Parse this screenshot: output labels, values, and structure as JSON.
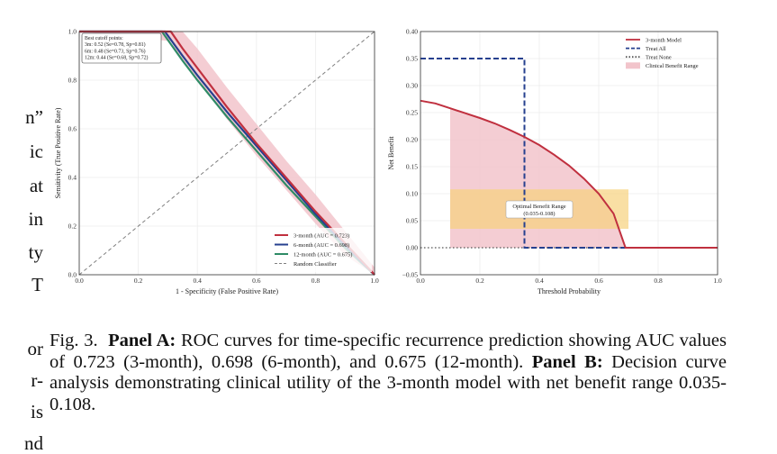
{
  "left_fragments": [
    "n”",
    "ic",
    "at",
    "in",
    "ty",
    "T",
    "or",
    "r-",
    "is",
    "nd"
  ],
  "caption": {
    "fig_label": "Fig. 3.",
    "panel_a_label": "Panel A:",
    "panel_a_text": "ROC curves for time-specific recurrence prediction showing AUC values of 0.723 (3-month), 0.698 (6-month), and 0.675 (12-month).",
    "panel_b_label": "Panel B:",
    "panel_b_text": "Decision curve analysis demonstrating clinical utility of the 3-month model with net benefit range 0.035-0.108."
  },
  "colors": {
    "three_month": "#c0303f",
    "six_month": "#26408f",
    "twelve_month": "#2e8b66",
    "random": "#808080",
    "ci_band": "#f2c4cb",
    "treat_all": "#26408f",
    "treat_none": "#555555",
    "optimal_box": "#f7d27e"
  },
  "chart_data": [
    {
      "type": "line",
      "panel": "A",
      "xlabel": "1 - Specificity (False Positive Rate)",
      "ylabel": "Sensitivity (True Positive Rate)",
      "xlim": [
        0.0,
        1.0
      ],
      "ylim": [
        0.0,
        1.0
      ],
      "x_ticks": [
        "0.0",
        "0.2",
        "0.4",
        "0.6",
        "0.8",
        "1.0"
      ],
      "y_ticks": [
        "0.0",
        "0.2",
        "0.4",
        "0.6",
        "0.8",
        "1.0"
      ],
      "grid": true,
      "legend_position": "lower-right",
      "annotation": {
        "title": "Best cutoff points:",
        "lines": [
          "3m: 0.52 (Se=0.78, Sp=0.81)",
          "6m: 0.48 (Se=0.73, Sp=0.76)",
          "12m: 0.44 (Se=0.68, Sp=0.72)"
        ]
      },
      "series": [
        {
          "name": "3-month (AUC = 0.723)",
          "color_key": "three_month",
          "x": [
            0.0,
            0.31,
            0.35,
            0.4,
            0.5,
            0.6,
            0.7,
            0.8,
            0.9,
            1.0
          ],
          "y": [
            1.0,
            1.0,
            0.93,
            0.85,
            0.69,
            0.54,
            0.4,
            0.26,
            0.13,
            0.0
          ],
          "band_upper": [
            1.0,
            1.0,
            1.0,
            0.93,
            0.77,
            0.62,
            0.47,
            0.33,
            0.18,
            0.03
          ],
          "band_lower": [
            1.0,
            0.96,
            0.88,
            0.8,
            0.64,
            0.49,
            0.35,
            0.21,
            0.08,
            0.0
          ]
        },
        {
          "name": "6-month (AUC = 0.698)",
          "color_key": "six_month",
          "x": [
            0.0,
            0.29,
            0.35,
            0.4,
            0.5,
            0.6,
            0.7,
            0.8,
            0.9,
            1.0
          ],
          "y": [
            1.0,
            1.0,
            0.9,
            0.82,
            0.67,
            0.53,
            0.39,
            0.25,
            0.12,
            0.0
          ]
        },
        {
          "name": "12-month (AUC = 0.675)",
          "color_key": "twelve_month",
          "x": [
            0.0,
            0.28,
            0.35,
            0.4,
            0.5,
            0.6,
            0.7,
            0.8,
            0.9,
            1.0
          ],
          "y": [
            1.0,
            1.0,
            0.88,
            0.8,
            0.65,
            0.51,
            0.37,
            0.24,
            0.11,
            0.0
          ]
        },
        {
          "name": "Random Classifier",
          "color_key": "random",
          "dashed": true,
          "x": [
            0.0,
            1.0
          ],
          "y": [
            0.0,
            1.0
          ]
        }
      ]
    },
    {
      "type": "line",
      "panel": "B",
      "xlabel": "Threshold Probability",
      "ylabel": "Net Benefit",
      "xlim": [
        0.0,
        1.0
      ],
      "ylim": [
        -0.05,
        0.4
      ],
      "x_ticks": [
        "0.0",
        "0.2",
        "0.4",
        "0.6",
        "0.8",
        "1.0"
      ],
      "y_ticks": [
        "−0.05",
        "0.00",
        "0.05",
        "0.10",
        "0.15",
        "0.20",
        "0.25",
        "0.30",
        "0.35",
        "0.40"
      ],
      "grid": true,
      "legend_position": "top-right",
      "series": [
        {
          "name": "3-month Model",
          "color_key": "three_month",
          "x": [
            0.0,
            0.05,
            0.1,
            0.15,
            0.2,
            0.25,
            0.3,
            0.35,
            0.4,
            0.45,
            0.5,
            0.55,
            0.6,
            0.65,
            0.69,
            0.7,
            1.0
          ],
          "y": [
            0.272,
            0.267,
            0.258,
            0.249,
            0.24,
            0.23,
            0.218,
            0.205,
            0.19,
            0.172,
            0.152,
            0.128,
            0.1,
            0.063,
            0.0,
            0.0,
            0.0
          ]
        },
        {
          "name": "Treat All",
          "color_key": "treat_all",
          "dashed": true,
          "x": [
            0.0,
            0.35,
            0.35,
            0.36,
            1.0
          ],
          "y": [
            0.35,
            0.35,
            0.0,
            0.0,
            0.0
          ]
        },
        {
          "name": "Treat None",
          "color_key": "treat_none",
          "dotted": true,
          "x": [
            0.0,
            1.0
          ],
          "y": [
            0.0,
            0.0
          ]
        }
      ],
      "shaded_region": {
        "name": "Clinical Benefit Range",
        "x_range": [
          0.1,
          0.69
        ]
      },
      "annotation_box": {
        "line1": "Optimal Benefit Range",
        "line2": "(0.035-0.108)",
        "x_range": [
          0.1,
          0.7
        ],
        "y_range": [
          0.035,
          0.108
        ]
      }
    }
  ]
}
